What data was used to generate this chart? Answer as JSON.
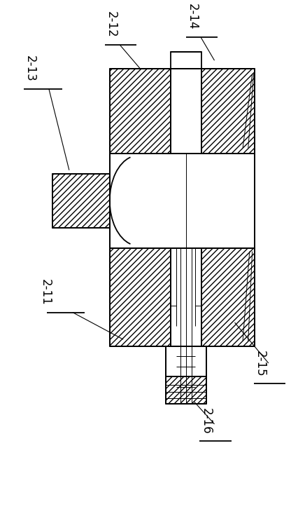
{
  "fig_width": 4.16,
  "fig_height": 7.56,
  "dpi": 100,
  "bg_color": "#ffffff",
  "line_color": "#000000",
  "fontsize": 12,
  "lw_main": 1.3,
  "lw_thin": 0.7,
  "lw_leader": 0.8
}
